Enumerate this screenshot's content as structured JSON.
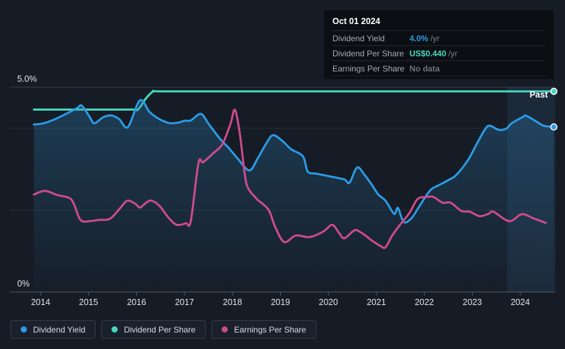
{
  "meta": {
    "past_label": "Past"
  },
  "tooltip": {
    "date": "Oct 01 2024",
    "rows": [
      {
        "label": "Dividend Yield",
        "value": "4.0%",
        "suffix": "/yr",
        "value_color": "#2b9be4"
      },
      {
        "label": "Dividend Per Share",
        "value": "US$0.440",
        "suffix": "/yr",
        "value_color": "#46d8be"
      },
      {
        "label": "Earnings Per Share",
        "value": "No data",
        "suffix": "",
        "value_color": "#6e747d"
      }
    ]
  },
  "legend": [
    {
      "label": "Dividend Yield",
      "color": "#2b9be4"
    },
    {
      "label": "Dividend Per Share",
      "color": "#46d8be"
    },
    {
      "label": "Earnings Per Share",
      "color": "#cf4b8c"
    }
  ],
  "colors": {
    "background": "#161c26",
    "grid_strong_top": "#3a414c",
    "grid_axis": "#575d66",
    "grid_faint": "#262d37",
    "tick": "#596069",
    "axis_text": "#e3e5e8",
    "band": "rgba(62,112,162,0.16)",
    "area_top": "rgba(43,125,178,0.34)",
    "area_bottom": "rgba(43,125,178,0.02)"
  },
  "chart_data": {
    "type": "line",
    "title": "Dividend history (past)",
    "xlabel": "",
    "ylabel": "",
    "ylim": [
      0,
      5
    ],
    "xlim": [
      2013.85,
      2024.75
    ],
    "x_ticks": [
      2014,
      2015,
      2016,
      2017,
      2018,
      2019,
      2020,
      2021,
      2022,
      2023,
      2024
    ],
    "gridlines": [
      {
        "pct": 5,
        "label": "5.0%",
        "strong": "top"
      },
      {
        "pct": 4
      },
      {
        "pct": 2
      },
      {
        "pct": 0,
        "label": "0%",
        "strong": "axis"
      }
    ],
    "highlight_band": {
      "from": 2023.73,
      "to": 2024.73
    },
    "legend_position": "bottom",
    "series": [
      {
        "name": "Dividend Per Share",
        "color": "#46d8be",
        "unit": "US$ per share",
        "to_pct_scale": 11.136,
        "end_dot": true,
        "points": [
          [
            2013.86,
            0.4
          ],
          [
            2015.0,
            0.4
          ],
          [
            2015.9,
            0.4
          ],
          [
            2016.03,
            0.4
          ],
          [
            2016.2,
            0.425
          ],
          [
            2016.35,
            0.44
          ],
          [
            2016.5,
            0.44
          ],
          [
            2018.0,
            0.44
          ],
          [
            2020.0,
            0.44
          ],
          [
            2022.0,
            0.44
          ],
          [
            2024.7,
            0.44
          ]
        ]
      },
      {
        "name": "Dividend Yield",
        "color": "#2b9be4",
        "unit": "%",
        "area": true,
        "end_dot": true,
        "points": [
          [
            2013.86,
            4.09
          ],
          [
            2014.06,
            4.12
          ],
          [
            2014.3,
            4.22
          ],
          [
            2014.55,
            4.36
          ],
          [
            2014.77,
            4.5
          ],
          [
            2014.86,
            4.55
          ],
          [
            2015.02,
            4.28
          ],
          [
            2015.12,
            4.12
          ],
          [
            2015.31,
            4.27
          ],
          [
            2015.48,
            4.31
          ],
          [
            2015.64,
            4.22
          ],
          [
            2015.82,
            4.03
          ],
          [
            2016.07,
            4.68
          ],
          [
            2016.27,
            4.4
          ],
          [
            2016.45,
            4.24
          ],
          [
            2016.67,
            4.13
          ],
          [
            2016.84,
            4.13
          ],
          [
            2017.0,
            4.18
          ],
          [
            2017.13,
            4.19
          ],
          [
            2017.34,
            4.35
          ],
          [
            2017.5,
            4.11
          ],
          [
            2017.74,
            3.74
          ],
          [
            2017.92,
            3.52
          ],
          [
            2018.1,
            3.27
          ],
          [
            2018.35,
            2.97
          ],
          [
            2018.53,
            3.27
          ],
          [
            2018.72,
            3.66
          ],
          [
            2018.85,
            3.83
          ],
          [
            2019.04,
            3.69
          ],
          [
            2019.22,
            3.49
          ],
          [
            2019.47,
            3.31
          ],
          [
            2019.57,
            2.94
          ],
          [
            2019.75,
            2.89
          ],
          [
            2020.04,
            2.82
          ],
          [
            2020.33,
            2.75
          ],
          [
            2020.44,
            2.67
          ],
          [
            2020.6,
            3.04
          ],
          [
            2020.76,
            2.85
          ],
          [
            2020.9,
            2.63
          ],
          [
            2021.04,
            2.38
          ],
          [
            2021.19,
            2.23
          ],
          [
            2021.37,
            1.91
          ],
          [
            2021.45,
            2.05
          ],
          [
            2021.57,
            1.71
          ],
          [
            2021.73,
            1.8
          ],
          [
            2021.9,
            2.1
          ],
          [
            2022.12,
            2.48
          ],
          [
            2022.29,
            2.6
          ],
          [
            2022.48,
            2.72
          ],
          [
            2022.66,
            2.85
          ],
          [
            2022.91,
            3.22
          ],
          [
            2023.09,
            3.61
          ],
          [
            2023.27,
            3.98
          ],
          [
            2023.37,
            4.06
          ],
          [
            2023.55,
            3.96
          ],
          [
            2023.71,
            3.99
          ],
          [
            2023.81,
            4.11
          ],
          [
            2024.06,
            4.28
          ],
          [
            2024.13,
            4.3
          ],
          [
            2024.34,
            4.16
          ],
          [
            2024.49,
            4.06
          ],
          [
            2024.7,
            4.03
          ]
        ]
      },
      {
        "name": "Earnings Per Share",
        "color": "#cf4b8c",
        "unit": "%",
        "points": [
          [
            2013.86,
            2.38
          ],
          [
            2014.09,
            2.47
          ],
          [
            2014.34,
            2.37
          ],
          [
            2014.59,
            2.3
          ],
          [
            2014.69,
            2.16
          ],
          [
            2014.83,
            1.76
          ],
          [
            2015.02,
            1.73
          ],
          [
            2015.21,
            1.76
          ],
          [
            2015.45,
            1.79
          ],
          [
            2015.66,
            2.05
          ],
          [
            2015.81,
            2.23
          ],
          [
            2015.98,
            2.15
          ],
          [
            2016.07,
            2.06
          ],
          [
            2016.2,
            2.18
          ],
          [
            2016.31,
            2.23
          ],
          [
            2016.48,
            2.1
          ],
          [
            2016.67,
            1.81
          ],
          [
            2016.84,
            1.64
          ],
          [
            2017.03,
            1.68
          ],
          [
            2017.13,
            1.73
          ],
          [
            2017.29,
            3.14
          ],
          [
            2017.39,
            3.17
          ],
          [
            2017.6,
            3.39
          ],
          [
            2017.79,
            3.61
          ],
          [
            2017.96,
            4.11
          ],
          [
            2018.05,
            4.45
          ],
          [
            2018.15,
            3.89
          ],
          [
            2018.25,
            2.94
          ],
          [
            2018.32,
            2.55
          ],
          [
            2018.51,
            2.27
          ],
          [
            2018.75,
            2.01
          ],
          [
            2018.89,
            1.59
          ],
          [
            2019.08,
            1.22
          ],
          [
            2019.32,
            1.38
          ],
          [
            2019.61,
            1.34
          ],
          [
            2019.9,
            1.48
          ],
          [
            2020.08,
            1.64
          ],
          [
            2020.23,
            1.43
          ],
          [
            2020.33,
            1.31
          ],
          [
            2020.51,
            1.48
          ],
          [
            2020.59,
            1.51
          ],
          [
            2020.76,
            1.39
          ],
          [
            2020.9,
            1.26
          ],
          [
            2021.09,
            1.12
          ],
          [
            2021.19,
            1.09
          ],
          [
            2021.33,
            1.38
          ],
          [
            2021.52,
            1.68
          ],
          [
            2021.69,
            1.93
          ],
          [
            2021.86,
            2.27
          ],
          [
            2022.05,
            2.32
          ],
          [
            2022.19,
            2.32
          ],
          [
            2022.38,
            2.18
          ],
          [
            2022.55,
            2.18
          ],
          [
            2022.77,
            1.98
          ],
          [
            2022.95,
            1.96
          ],
          [
            2023.15,
            1.85
          ],
          [
            2023.34,
            1.91
          ],
          [
            2023.44,
            1.96
          ],
          [
            2023.77,
            1.73
          ],
          [
            2024.03,
            1.9
          ],
          [
            2024.27,
            1.8
          ],
          [
            2024.53,
            1.69
          ]
        ]
      }
    ]
  }
}
